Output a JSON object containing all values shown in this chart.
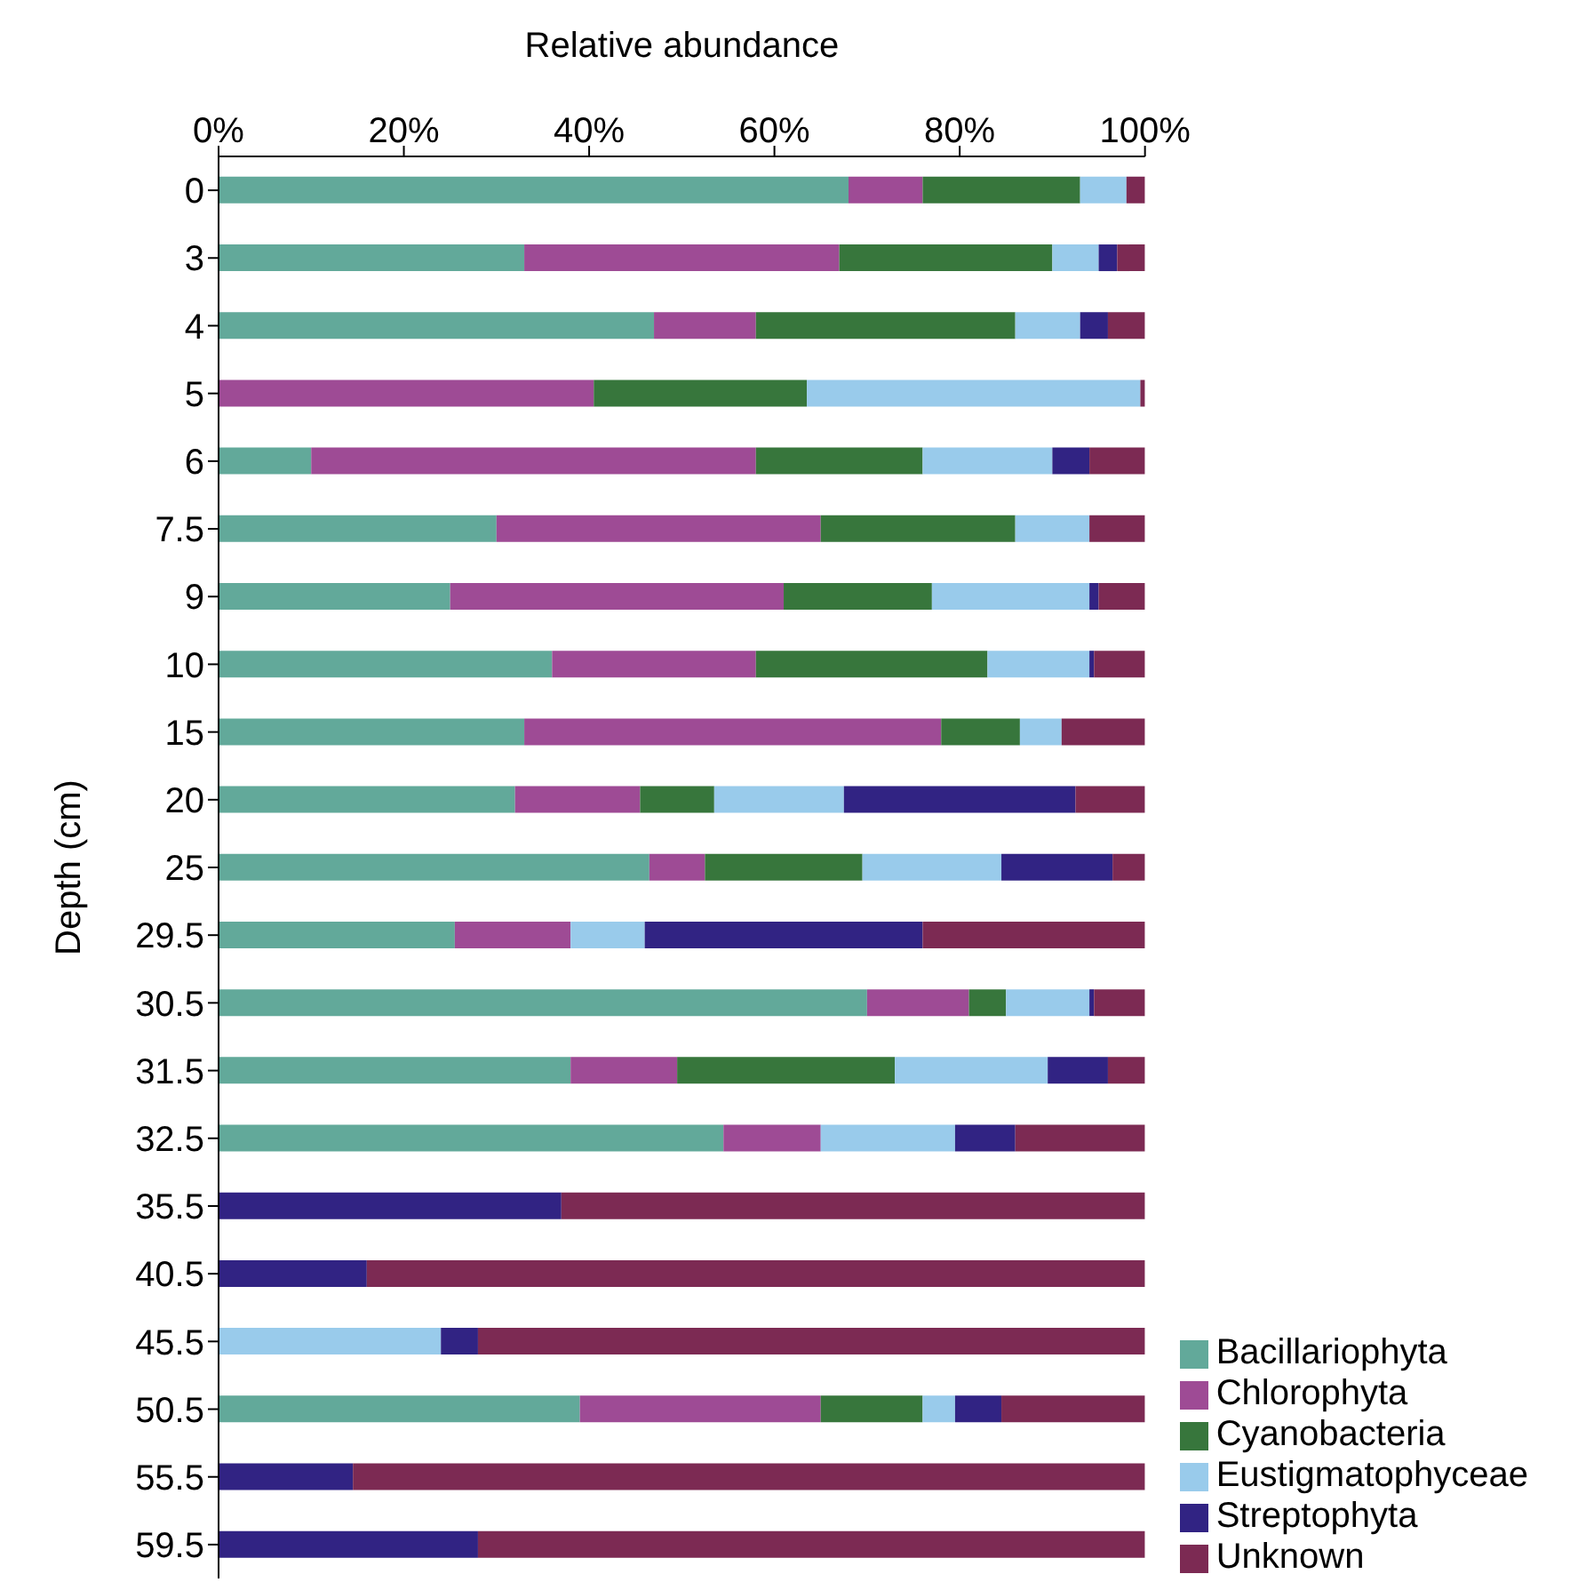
{
  "chart_data": {
    "type": "bar",
    "orientation": "horizontal",
    "stacked": true,
    "xlabel": "Relative abundance",
    "ylabel": "Depth (cm)",
    "categories": [
      "0",
      "3",
      "4",
      "5",
      "6",
      "7.5",
      "9",
      "10",
      "15",
      "20",
      "25",
      "29.5",
      "30.5",
      "31.5",
      "32.5",
      "35.5",
      "40.5",
      "45.5",
      "50.5",
      "55.5",
      "59.5"
    ],
    "series": [
      {
        "name": "Bacillariophyta",
        "color": "#62a99a",
        "values": [
          68,
          33,
          47,
          0,
          10,
          30,
          25,
          36,
          33,
          32,
          46.5,
          25.5,
          70,
          38,
          54.5,
          0,
          0,
          0,
          39,
          0,
          0
        ]
      },
      {
        "name": "Chlorophyta",
        "color": "#9e4b95",
        "values": [
          8,
          34,
          11,
          40.5,
          48,
          35,
          36,
          22,
          45,
          13.5,
          6,
          12.5,
          11,
          11.5,
          10.5,
          0,
          0,
          0,
          26,
          0,
          0
        ]
      },
      {
        "name": "Cyanobacteria",
        "color": "#37763c",
        "values": [
          17,
          23,
          28,
          23,
          18,
          21,
          16,
          25,
          8.5,
          8,
          17,
          0,
          4,
          23.5,
          0,
          0,
          0,
          0,
          11,
          0,
          0
        ]
      },
      {
        "name": "Eustigmatophyceae",
        "color": "#99cbeb",
        "values": [
          5,
          5,
          7,
          36,
          14,
          8,
          17,
          11,
          4.5,
          14,
          15,
          8,
          9,
          16.5,
          14.5,
          0,
          0,
          24,
          3.5,
          0,
          0
        ]
      },
      {
        "name": "Streptophyta",
        "color": "#312383",
        "values": [
          0,
          2,
          3,
          0,
          4,
          0,
          1,
          0.5,
          0,
          25,
          12,
          30,
          0.5,
          6.5,
          6.5,
          37,
          16,
          4,
          5,
          14.5,
          28
        ]
      },
      {
        "name": "Unknown",
        "color": "#7c2a53",
        "values": [
          2,
          3,
          4,
          0.5,
          6,
          6,
          5,
          5.5,
          9,
          7.5,
          3.5,
          24,
          5.5,
          4,
          14,
          63,
          84,
          72,
          15.5,
          85.5,
          72
        ]
      }
    ],
    "xlim": [
      0,
      100
    ],
    "xticks": [
      {
        "value": 0,
        "label": "0%"
      },
      {
        "value": 20,
        "label": "20%"
      },
      {
        "value": 40,
        "label": "40%"
      },
      {
        "value": 60,
        "label": "60%"
      },
      {
        "value": 80,
        "label": "80%"
      },
      {
        "value": 100,
        "label": "100%"
      }
    ],
    "grid": false,
    "legend": "bottom right"
  }
}
